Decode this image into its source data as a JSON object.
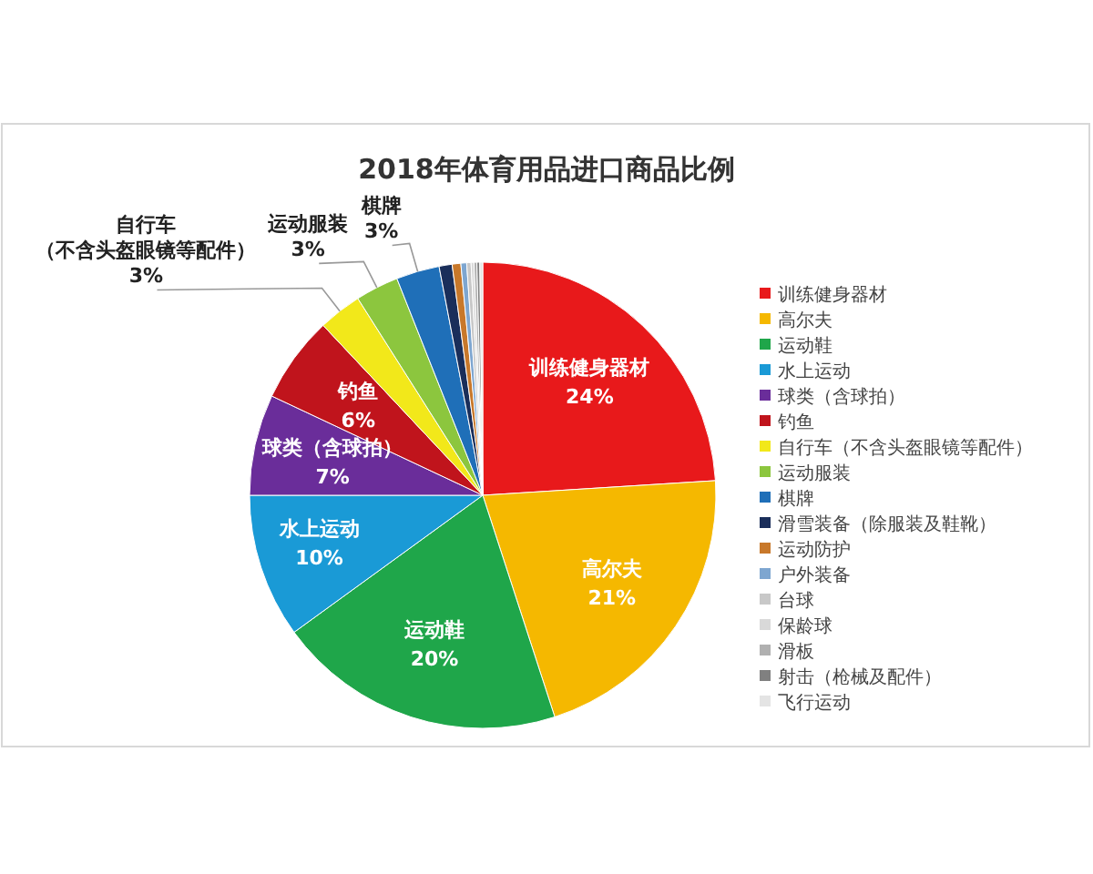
{
  "chart_data": {
    "type": "pie",
    "title": "2018年体育用品进口商品比例",
    "categories": [
      "训练健身器材",
      "高尔夫",
      "运动鞋",
      "水上运动",
      "球类（含球拍）",
      "钓鱼",
      "自行车（不含头盔眼镜等配件）",
      "运动服装",
      "棋牌",
      "滑雪装备（除服装及鞋靴）",
      "运动防护",
      "户外装备",
      "台球",
      "保龄球",
      "滑板",
      "射击（枪械及配件）",
      "飞行运动"
    ],
    "values": [
      24,
      21,
      20,
      10,
      7,
      6,
      3,
      3,
      3,
      0.9,
      0.6,
      0.4,
      0.3,
      0.2,
      0.2,
      0.2,
      0.2
    ],
    "value_labels": [
      "24%",
      "21%",
      "20%",
      "10%",
      "7%",
      "6%",
      "3%",
      "3%",
      "3%",
      null,
      null,
      null,
      null,
      null,
      null,
      null,
      null
    ],
    "colors": [
      "#e8191b",
      "#f5b800",
      "#1fa64a",
      "#1a9ad6",
      "#6a2d9a",
      "#c0141c",
      "#f2e81a",
      "#8cc63e",
      "#1f6fb8",
      "#1a2e5a",
      "#c8782a",
      "#7ea6d0",
      "#c8c8c8",
      "#d9d9d9",
      "#b0b0b0",
      "#808080",
      "#e4e4e4"
    ],
    "legend": "right"
  }
}
